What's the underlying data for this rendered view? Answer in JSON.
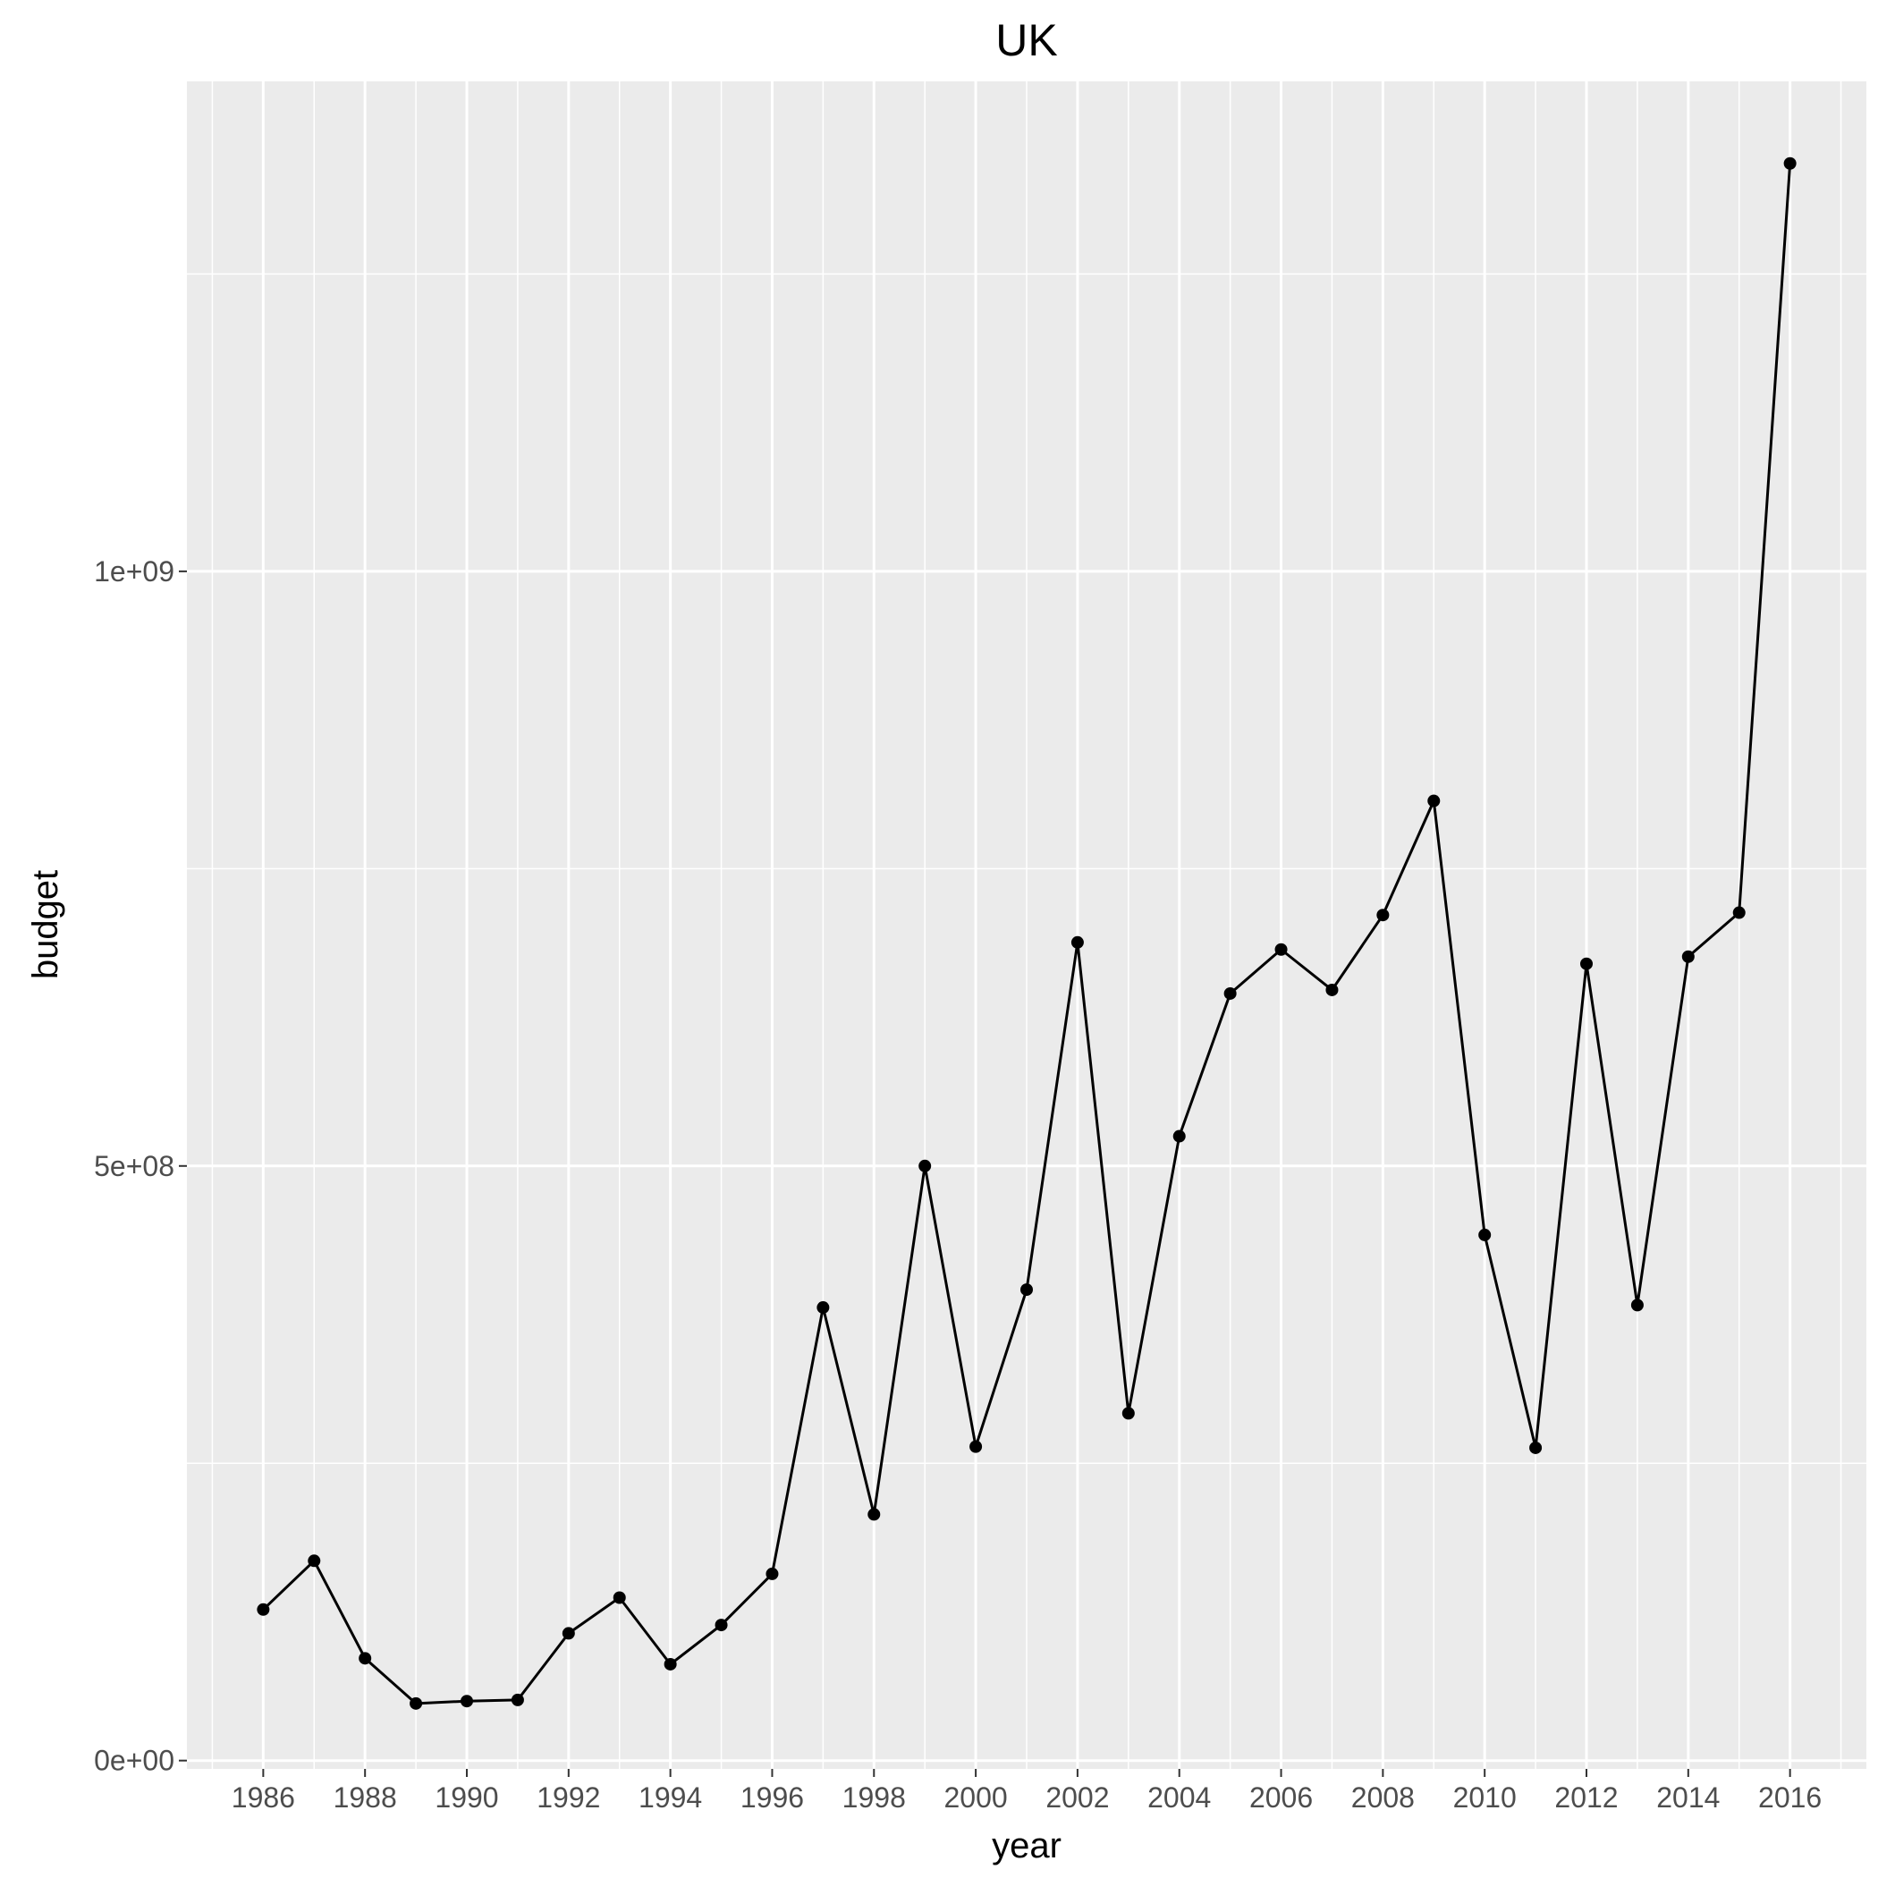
{
  "chart_data": {
    "type": "line",
    "title": "UK",
    "xlabel": "year",
    "ylabel": "budget",
    "x": [
      1986,
      1987,
      1988,
      1989,
      1990,
      1991,
      1992,
      1993,
      1994,
      1995,
      1996,
      1997,
      1998,
      1999,
      2000,
      2001,
      2002,
      2003,
      2004,
      2005,
      2006,
      2007,
      2008,
      2009,
      2010,
      2011,
      2012,
      2013,
      2014,
      2015,
      2016
    ],
    "series": [
      {
        "values": [
          127000000,
          168000000,
          86000000,
          48000000,
          50000000,
          51000000,
          107000000,
          137000000,
          81000000,
          114000000,
          157000000,
          381000000,
          207000000,
          500000000,
          264000000,
          396000000,
          688000000,
          292000000,
          525000000,
          645000000,
          682000000,
          648000000,
          711000000,
          807000000,
          442000000,
          263000000,
          670000000,
          383000000,
          676000000,
          713000000,
          1343000000
        ]
      }
    ],
    "xlim": [
      1984.5,
      2017.5
    ],
    "ylim": [
      -7000000,
      1412000000
    ],
    "x_ticks": [
      "1986",
      "1988",
      "1990",
      "1992",
      "1994",
      "1996",
      "1998",
      "2000",
      "2002",
      "2004",
      "2006",
      "2008",
      "2010",
      "2012",
      "2014",
      "2016"
    ],
    "y_ticks": [
      "0e+00",
      "5e+08",
      "1e+09"
    ],
    "grid": true,
    "background": "#ebebeb",
    "line_color": "#000000"
  }
}
